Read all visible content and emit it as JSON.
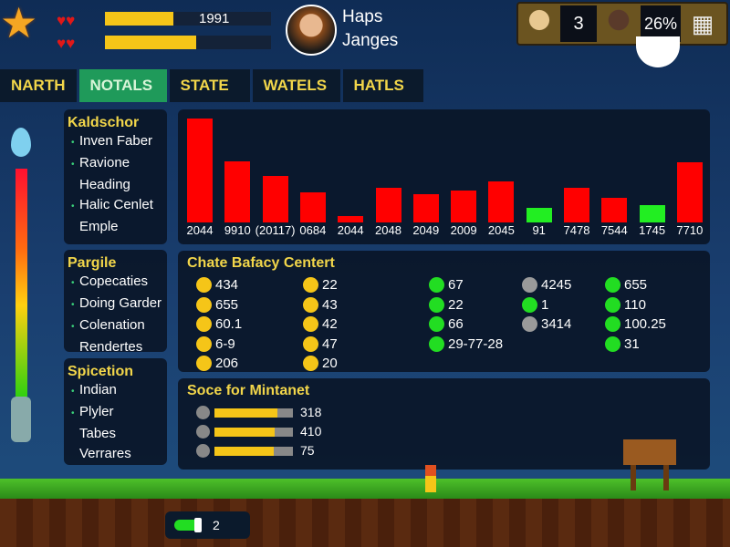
{
  "hud": {
    "top_value": "1991",
    "player_name_1": "Haps",
    "player_name_2": "Janges",
    "health_fill": 0.41,
    "mana_fill": 0.55,
    "counter": "3",
    "percent": "26%"
  },
  "tabs": [
    "NARTH",
    "NOTALS",
    "STATE",
    "WATELS",
    "HATLS"
  ],
  "active_tab": 1,
  "sidebar": [
    {
      "title": "Kaldschor",
      "items": [
        "Inven Faber",
        "Ravione",
        "Heading",
        "Halic Cenlet",
        "Emple"
      ],
      "bullets": [
        true,
        true,
        false,
        true,
        false
      ]
    },
    {
      "title": "Pargile",
      "items": [
        "Copecaties",
        "Doing Garder",
        "Colenation",
        "Rendertes"
      ],
      "bullets": [
        true,
        true,
        true,
        false
      ]
    },
    {
      "title": "Spicetion",
      "items": [
        "Indian",
        "Plyler",
        "Tabes",
        "Verrares"
      ],
      "bullets": [
        true,
        true,
        false,
        false
      ]
    }
  ],
  "chart_data": {
    "type": "bar",
    "categories": [
      "2044",
      "9910",
      "(20117)",
      "0684",
      "2044",
      "2048",
      "2049",
      "2009",
      "2045",
      "91",
      "7478",
      "7544",
      "1745",
      "7710"
    ],
    "values": [
      117,
      69,
      52,
      34,
      7,
      39,
      32,
      36,
      46,
      16,
      39,
      28,
      19,
      68
    ],
    "colors": [
      "#ff0000",
      "#ff0000",
      "#ff0000",
      "#ff0000",
      "#ff0000",
      "#ff0000",
      "#ff0000",
      "#ff0000",
      "#ff0000",
      "#22ee22",
      "#ff0000",
      "#ff0000",
      "#22ee22",
      "#ff0000"
    ]
  },
  "stats": {
    "title": "Chate Bafacy Centert",
    "columns": [
      {
        "color": "#f5c518",
        "values": [
          "434",
          "655",
          "60.1",
          "6-9",
          "206"
        ]
      },
      {
        "color": "#f5c518",
        "values": [
          "22",
          "43",
          "42",
          "47",
          "20"
        ]
      },
      {
        "color": "#22dd22",
        "values": [
          "67",
          "22",
          "66",
          "29-77-28"
        ]
      },
      {
        "colors": [
          "#9a9a9a",
          "#22dd22",
          "#9a9a9a"
        ],
        "values": [
          "4245",
          "1",
          "3414"
        ]
      },
      {
        "color": "#22dd22",
        "values": [
          "655",
          "110",
          "100.25",
          "31"
        ]
      }
    ]
  },
  "scores": {
    "title": "Soce for Mintanet",
    "rows": [
      {
        "value": "318",
        "fill": 0.8
      },
      {
        "value": "410",
        "fill": 0.77
      },
      {
        "value": "75",
        "fill": 0.76
      }
    ]
  },
  "bottom": {
    "count": "2"
  }
}
